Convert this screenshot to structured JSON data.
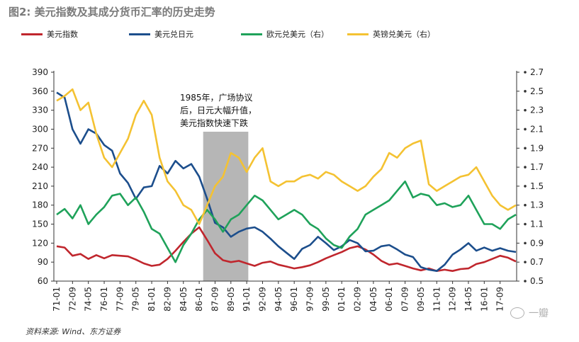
{
  "title": "图2: 美元指数及其成分货币汇率的历史走势",
  "source": "资料来源: Wind、东方证券",
  "watermark": "一瓣",
  "chart_data": {
    "type": "line",
    "xticks": [
      "71-01",
      "72-09",
      "74-05",
      "76-01",
      "77-09",
      "79-05",
      "81-01",
      "82-09",
      "84-05",
      "86-01",
      "87-09",
      "89-05",
      "91-01",
      "92-09",
      "94-05",
      "96-01",
      "97-09",
      "99-05",
      "01-01",
      "02-09",
      "04-05",
      "06-01",
      "07-09",
      "09-05",
      "11-01",
      "12-09",
      "14-05",
      "16-01",
      "17-09"
    ],
    "left_axis": {
      "min": 60,
      "max": 390,
      "ticks": [
        60,
        90,
        120,
        150,
        180,
        210,
        240,
        270,
        300,
        330,
        360,
        390
      ]
    },
    "right_axis": {
      "min": 0.5,
      "max": 2.7,
      "ticks": [
        0.5,
        0.7,
        0.9,
        1.1,
        1.3,
        1.5,
        1.7,
        1.9,
        2.1,
        2.3,
        2.5,
        2.7
      ]
    },
    "annotation": {
      "text": [
        "1985年，广场协议",
        "后，日元大幅升值，",
        "美元指数快速下跌"
      ],
      "shade_from": "85-02",
      "shade_to": "89-04"
    },
    "series": [
      {
        "name": "美元指数",
        "axis": "left",
        "color": "#c0262d",
        "points": [
          [
            0,
            115
          ],
          [
            1,
            113
          ],
          [
            2,
            100
          ],
          [
            3,
            103
          ],
          [
            4,
            95
          ],
          [
            5,
            101
          ],
          [
            6,
            96
          ],
          [
            7,
            101
          ],
          [
            8,
            100
          ],
          [
            9,
            99
          ],
          [
            10,
            94
          ],
          [
            11,
            88
          ],
          [
            12,
            84
          ],
          [
            13,
            86
          ],
          [
            14,
            95
          ],
          [
            15,
            108
          ],
          [
            16,
            122
          ],
          [
            17,
            135
          ],
          [
            18,
            145
          ],
          [
            19,
            125
          ],
          [
            20,
            104
          ],
          [
            21,
            93
          ],
          [
            22,
            90
          ],
          [
            23,
            92
          ],
          [
            24,
            88
          ],
          [
            25,
            84
          ],
          [
            26,
            89
          ],
          [
            27,
            91
          ],
          [
            28,
            86
          ],
          [
            29,
            83
          ],
          [
            30,
            80
          ],
          [
            31,
            82
          ],
          [
            32,
            85
          ],
          [
            33,
            90
          ],
          [
            34,
            96
          ],
          [
            35,
            101
          ],
          [
            36,
            106
          ],
          [
            37,
            112
          ],
          [
            38,
            115
          ],
          [
            39,
            110
          ],
          [
            40,
            102
          ],
          [
            41,
            92
          ],
          [
            42,
            86
          ],
          [
            43,
            88
          ],
          [
            44,
            84
          ],
          [
            45,
            80
          ],
          [
            46,
            77
          ],
          [
            47,
            80
          ],
          [
            48,
            76
          ],
          [
            49,
            78
          ],
          [
            50,
            76
          ],
          [
            51,
            79
          ],
          [
            52,
            80
          ],
          [
            53,
            87
          ],
          [
            54,
            90
          ],
          [
            55,
            95
          ],
          [
            56,
            100
          ],
          [
            57,
            97
          ],
          [
            58,
            91
          ]
        ]
      },
      {
        "name": "美元兑日元",
        "axis": "left",
        "color": "#1c4e8c",
        "points": [
          [
            0,
            358
          ],
          [
            1,
            350
          ],
          [
            2,
            300
          ],
          [
            3,
            277
          ],
          [
            4,
            300
          ],
          [
            5,
            293
          ],
          [
            6,
            275
          ],
          [
            7,
            266
          ],
          [
            8,
            230
          ],
          [
            9,
            215
          ],
          [
            10,
            190
          ],
          [
            11,
            208
          ],
          [
            12,
            210
          ],
          [
            13,
            242
          ],
          [
            14,
            230
          ],
          [
            15,
            250
          ],
          [
            16,
            238
          ],
          [
            17,
            245
          ],
          [
            18,
            225
          ],
          [
            19,
            190
          ],
          [
            20,
            152
          ],
          [
            21,
            145
          ],
          [
            22,
            130
          ],
          [
            23,
            138
          ],
          [
            24,
            143
          ],
          [
            25,
            145
          ],
          [
            26,
            138
          ],
          [
            27,
            127
          ],
          [
            28,
            115
          ],
          [
            29,
            105
          ],
          [
            30,
            95
          ],
          [
            31,
            111
          ],
          [
            32,
            117
          ],
          [
            33,
            130
          ],
          [
            34,
            120
          ],
          [
            35,
            109
          ],
          [
            36,
            115
          ],
          [
            37,
            125
          ],
          [
            38,
            120
          ],
          [
            39,
            107
          ],
          [
            40,
            108
          ],
          [
            41,
            115
          ],
          [
            42,
            117
          ],
          [
            43,
            110
          ],
          [
            44,
            102
          ],
          [
            45,
            98
          ],
          [
            46,
            82
          ],
          [
            47,
            78
          ],
          [
            48,
            76
          ],
          [
            49,
            86
          ],
          [
            50,
            102
          ],
          [
            51,
            110
          ],
          [
            52,
            120
          ],
          [
            53,
            108
          ],
          [
            54,
            113
          ],
          [
            55,
            108
          ],
          [
            56,
            112
          ],
          [
            57,
            108
          ],
          [
            58,
            106
          ]
        ]
      },
      {
        "name": "欧元兑美元（右）",
        "axis": "right",
        "color": "#1fa25a",
        "points": [
          [
            0,
            1.2
          ],
          [
            1,
            1.26
          ],
          [
            2,
            1.16
          ],
          [
            3,
            1.3
          ],
          [
            4,
            1.1
          ],
          [
            5,
            1.2
          ],
          [
            6,
            1.28
          ],
          [
            7,
            1.4
          ],
          [
            8,
            1.42
          ],
          [
            9,
            1.3
          ],
          [
            10,
            1.38
          ],
          [
            11,
            1.23
          ],
          [
            12,
            1.05
          ],
          [
            13,
            1.0
          ],
          [
            14,
            0.85
          ],
          [
            15,
            0.7
          ],
          [
            16,
            0.88
          ],
          [
            17,
            1.0
          ],
          [
            18,
            1.15
          ],
          [
            19,
            1.25
          ],
          [
            20,
            1.15
          ],
          [
            21,
            1.02
          ],
          [
            22,
            1.15
          ],
          [
            23,
            1.2
          ],
          [
            24,
            1.3
          ],
          [
            25,
            1.4
          ],
          [
            26,
            1.35
          ],
          [
            27,
            1.25
          ],
          [
            28,
            1.15
          ],
          [
            29,
            1.2
          ],
          [
            30,
            1.25
          ],
          [
            31,
            1.2
          ],
          [
            32,
            1.1
          ],
          [
            33,
            1.05
          ],
          [
            34,
            0.95
          ],
          [
            35,
            0.88
          ],
          [
            36,
            0.85
          ],
          [
            37,
            0.97
          ],
          [
            38,
            1.05
          ],
          [
            39,
            1.2
          ],
          [
            40,
            1.25
          ],
          [
            41,
            1.3
          ],
          [
            42,
            1.35
          ],
          [
            43,
            1.45
          ],
          [
            44,
            1.55
          ],
          [
            45,
            1.38
          ],
          [
            46,
            1.42
          ],
          [
            47,
            1.4
          ],
          [
            48,
            1.3
          ],
          [
            49,
            1.32
          ],
          [
            50,
            1.28
          ],
          [
            51,
            1.3
          ],
          [
            52,
            1.4
          ],
          [
            53,
            1.25
          ],
          [
            54,
            1.1
          ],
          [
            55,
            1.1
          ],
          [
            56,
            1.05
          ],
          [
            57,
            1.15
          ],
          [
            58,
            1.2
          ]
        ]
      },
      {
        "name": "英镑兑美元（右）",
        "axis": "right",
        "color": "#f4c232",
        "points": [
          [
            0,
            2.4
          ],
          [
            1,
            2.45
          ],
          [
            2,
            2.52
          ],
          [
            3,
            2.3
          ],
          [
            4,
            2.38
          ],
          [
            5,
            2.05
          ],
          [
            6,
            1.8
          ],
          [
            7,
            1.7
          ],
          [
            8,
            1.85
          ],
          [
            9,
            2.0
          ],
          [
            10,
            2.25
          ],
          [
            11,
            2.4
          ],
          [
            12,
            2.25
          ],
          [
            13,
            1.8
          ],
          [
            14,
            1.55
          ],
          [
            15,
            1.45
          ],
          [
            16,
            1.3
          ],
          [
            17,
            1.25
          ],
          [
            18,
            1.1
          ],
          [
            19,
            1.3
          ],
          [
            20,
            1.5
          ],
          [
            21,
            1.6
          ],
          [
            22,
            1.85
          ],
          [
            23,
            1.8
          ],
          [
            24,
            1.65
          ],
          [
            25,
            1.8
          ],
          [
            26,
            1.9
          ],
          [
            27,
            1.55
          ],
          [
            28,
            1.5
          ],
          [
            29,
            1.55
          ],
          [
            30,
            1.55
          ],
          [
            31,
            1.6
          ],
          [
            32,
            1.62
          ],
          [
            33,
            1.58
          ],
          [
            34,
            1.65
          ],
          [
            35,
            1.62
          ],
          [
            36,
            1.55
          ],
          [
            37,
            1.5
          ],
          [
            38,
            1.45
          ],
          [
            39,
            1.5
          ],
          [
            40,
            1.6
          ],
          [
            41,
            1.68
          ],
          [
            42,
            1.85
          ],
          [
            43,
            1.8
          ],
          [
            44,
            1.9
          ],
          [
            45,
            1.95
          ],
          [
            46,
            1.98
          ],
          [
            47,
            1.52
          ],
          [
            48,
            1.45
          ],
          [
            49,
            1.5
          ],
          [
            50,
            1.55
          ],
          [
            51,
            1.6
          ],
          [
            52,
            1.62
          ],
          [
            53,
            1.7
          ],
          [
            54,
            1.55
          ],
          [
            55,
            1.4
          ],
          [
            56,
            1.3
          ],
          [
            57,
            1.25
          ],
          [
            58,
            1.3
          ]
        ]
      }
    ]
  }
}
